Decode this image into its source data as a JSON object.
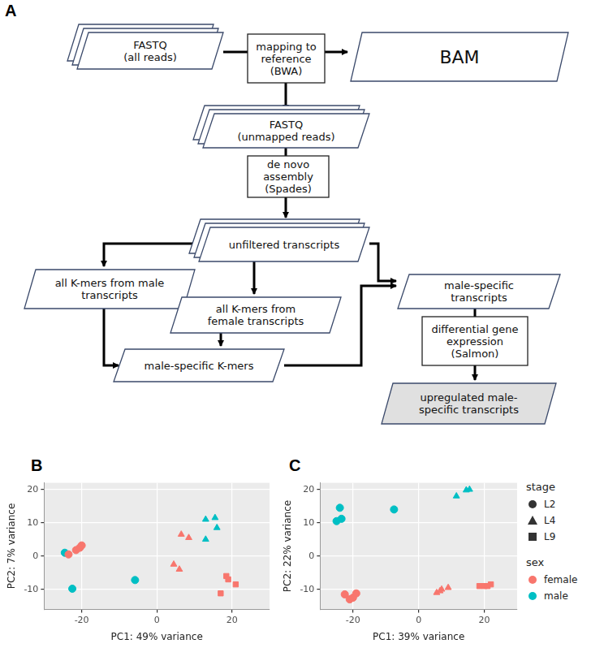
{
  "diagram": {
    "label": "A",
    "nodes": [
      {
        "shape": "data",
        "stacked": true,
        "lines": [
          "FASTQ",
          "(all reads)"
        ]
      },
      {
        "shape": "process",
        "lines": [
          "mapping to",
          "reference",
          "(BWA)"
        ]
      },
      {
        "shape": "data",
        "lines": [
          "BAM"
        ]
      },
      {
        "shape": "data",
        "stacked": true,
        "lines": [
          "FASTQ",
          "(unmapped reads)"
        ]
      },
      {
        "shape": "process",
        "lines": [
          "de novo",
          "assembly",
          "(Spades)"
        ]
      },
      {
        "shape": "data",
        "stacked": true,
        "lines": [
          "unfiltered transcripts"
        ]
      },
      {
        "shape": "data",
        "lines": [
          "all K-mers from male",
          "transcripts"
        ]
      },
      {
        "shape": "data",
        "lines": [
          "all K-mers from",
          "female transcripts"
        ]
      },
      {
        "shape": "data",
        "lines": [
          "male-specific K-mers"
        ]
      },
      {
        "shape": "data",
        "lines": [
          "male-specific",
          "transcripts"
        ]
      },
      {
        "shape": "process",
        "lines": [
          "differential gene",
          "expression",
          "(Salmon)"
        ]
      },
      {
        "shape": "data",
        "color": "#e0e0e0",
        "lines": [
          "upregulated male-",
          "specific transcripts"
        ]
      }
    ]
  },
  "chart_data": [
    {
      "type": "scatter",
      "label": "B",
      "x_label": "PC1: 49% variance",
      "y_label": "PC2: 7% variance",
      "xlim": [
        -30,
        30
      ],
      "ylim": [
        -16,
        22
      ],
      "xticks": [
        -20,
        0,
        20
      ],
      "yticks": [
        -10,
        0,
        10,
        20
      ],
      "grid": true,
      "series": [
        {
          "sex": "female",
          "stage": "L2",
          "color": "#F8766D",
          "marker": "circle",
          "values": [
            [
              -23.5,
              0.5
            ],
            [
              -21.5,
              1.8
            ],
            [
              -20.5,
              2.5
            ],
            [
              -20,
              3.2
            ]
          ]
        },
        {
          "sex": "female",
          "stage": "L4",
          "color": "#F8766D",
          "marker": "triangle",
          "values": [
            [
              6.5,
              6.5
            ],
            [
              8.5,
              5.5
            ],
            [
              4.5,
              -2.5
            ],
            [
              6,
              -4
            ]
          ]
        },
        {
          "sex": "female",
          "stage": "L9",
          "color": "#F8766D",
          "marker": "square",
          "values": [
            [
              18.5,
              -6
            ],
            [
              19,
              -7
            ],
            [
              21,
              -8.5
            ],
            [
              17,
              -11.2
            ]
          ]
        },
        {
          "sex": "male",
          "stage": "L2",
          "color": "#00BFC4",
          "marker": "circle",
          "values": [
            [
              -24.5,
              1
            ],
            [
              -22.5,
              -9.8
            ],
            [
              -5.8,
              -7.2
            ]
          ]
        },
        {
          "sex": "male",
          "stage": "L4",
          "color": "#00BFC4",
          "marker": "triangle",
          "values": [
            [
              13,
              11
            ],
            [
              15.5,
              11.5
            ],
            [
              16,
              8.5
            ],
            [
              13,
              5
            ]
          ]
        }
      ]
    },
    {
      "type": "scatter",
      "label": "C",
      "x_label": "PC1: 39% variance",
      "y_label": "PC2: 22% variance",
      "xlim": [
        -30,
        30
      ],
      "ylim": [
        -16,
        22
      ],
      "xticks": [
        -20,
        0,
        20
      ],
      "yticks": [
        -10,
        0,
        10,
        20
      ],
      "grid": true,
      "series": [
        {
          "sex": "female",
          "stage": "L2",
          "color": "#F8766D",
          "marker": "circle",
          "values": [
            [
              -22.5,
              -11.5
            ],
            [
              -21,
              -13
            ],
            [
              -20,
              -12.5
            ],
            [
              -19,
              -11.2
            ]
          ]
        },
        {
          "sex": "female",
          "stage": "L4",
          "color": "#F8766D",
          "marker": "triangle",
          "values": [
            [
              5.5,
              -11
            ],
            [
              7,
              -10
            ],
            [
              9,
              -9.5
            ],
            [
              6.5,
              -10.5
            ]
          ]
        },
        {
          "sex": "female",
          "stage": "L9",
          "color": "#F8766D",
          "marker": "square",
          "values": [
            [
              18.5,
              -9
            ],
            [
              20,
              -9
            ],
            [
              22,
              -8.5
            ],
            [
              21,
              -9
            ]
          ]
        },
        {
          "sex": "male",
          "stage": "L2",
          "color": "#00BFC4",
          "marker": "circle",
          "values": [
            [
              -24,
              14.5
            ],
            [
              -23.5,
              11.2
            ],
            [
              -25,
              10.5
            ],
            [
              -7.5,
              14
            ]
          ]
        },
        {
          "sex": "male",
          "stage": "L4",
          "color": "#00BFC4",
          "marker": "triangle",
          "values": [
            [
              11.5,
              18
            ],
            [
              14.5,
              19.8
            ],
            [
              15.5,
              20
            ]
          ]
        }
      ]
    }
  ],
  "key": {
    "groups": [
      {
        "title": "stage",
        "entries": [
          {
            "label": "L2",
            "marker": "circle"
          },
          {
            "label": "L4",
            "marker": "triangle"
          },
          {
            "label": "L9",
            "marker": "square"
          }
        ]
      },
      {
        "title": "sex",
        "entries": [
          {
            "label": "female",
            "color": "#F8766D"
          },
          {
            "label": "male",
            "color": "#00BFC4"
          }
        ]
      }
    ]
  }
}
